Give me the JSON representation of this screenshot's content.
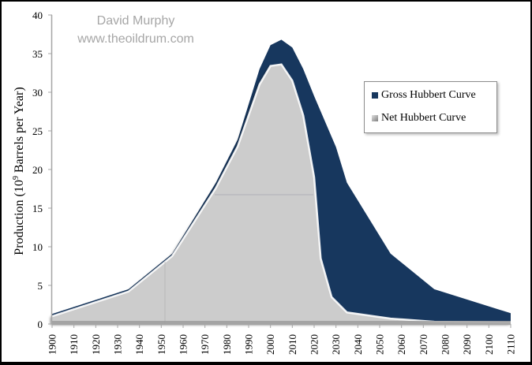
{
  "watermark": {
    "line1": "David Murphy",
    "line2": "www.theoildrum.com"
  },
  "legend": {
    "items": [
      {
        "label": "Gross Hubbert Curve",
        "color": "#17375e"
      },
      {
        "label": "Net Hubbert Curve",
        "color": "#a6a6a6"
      }
    ]
  },
  "colors": {
    "gross_fill": "#17375e",
    "net_fill": "#cccccc",
    "axis": "#a6a6a6"
  },
  "chart_data": {
    "type": "area",
    "title": "",
    "xlabel": "",
    "ylabel": "Production (10^9 Barrels per Year)",
    "ylabel_parts": {
      "pre": "Production (10",
      "sup": "9",
      "post": " Barrels per Year)"
    },
    "ylim": [
      0,
      40
    ],
    "xlim": [
      1900,
      2110
    ],
    "yticks": [
      0,
      5,
      10,
      15,
      20,
      25,
      30,
      35,
      40
    ],
    "xticks": [
      1900,
      1910,
      1920,
      1930,
      1940,
      1950,
      1960,
      1970,
      1980,
      1990,
      2000,
      2010,
      2020,
      2030,
      2040,
      2050,
      2060,
      2070,
      2080,
      2090,
      2100,
      2110
    ],
    "grid": false,
    "legend_position": "upper right",
    "series": [
      {
        "name": "Gross Hubbert Curve",
        "x": [
          1900,
          1935,
          1955,
          1975,
          1985,
          1995,
          2000,
          2005,
          2010,
          2015,
          2020,
          2030,
          2035,
          2055,
          2075,
          2110
        ],
        "values": [
          1.3,
          4.5,
          9.1,
          18.3,
          23.9,
          33.0,
          36.1,
          36.8,
          35.8,
          33.0,
          29.5,
          22.9,
          18.3,
          9.1,
          4.5,
          1.4
        ]
      },
      {
        "name": "Net Hubbert Curve",
        "x": [
          1900,
          1935,
          1955,
          1975,
          1985,
          1995,
          2000,
          2005,
          2010,
          2015,
          2020,
          2023,
          2028,
          2035,
          2055,
          2075,
          2110
        ],
        "values": [
          1.0,
          4.2,
          8.8,
          17.6,
          23.0,
          31.0,
          33.4,
          33.6,
          31.5,
          27.0,
          19.0,
          8.5,
          3.5,
          1.5,
          0.7,
          0.3,
          0.2
        ]
      }
    ]
  }
}
